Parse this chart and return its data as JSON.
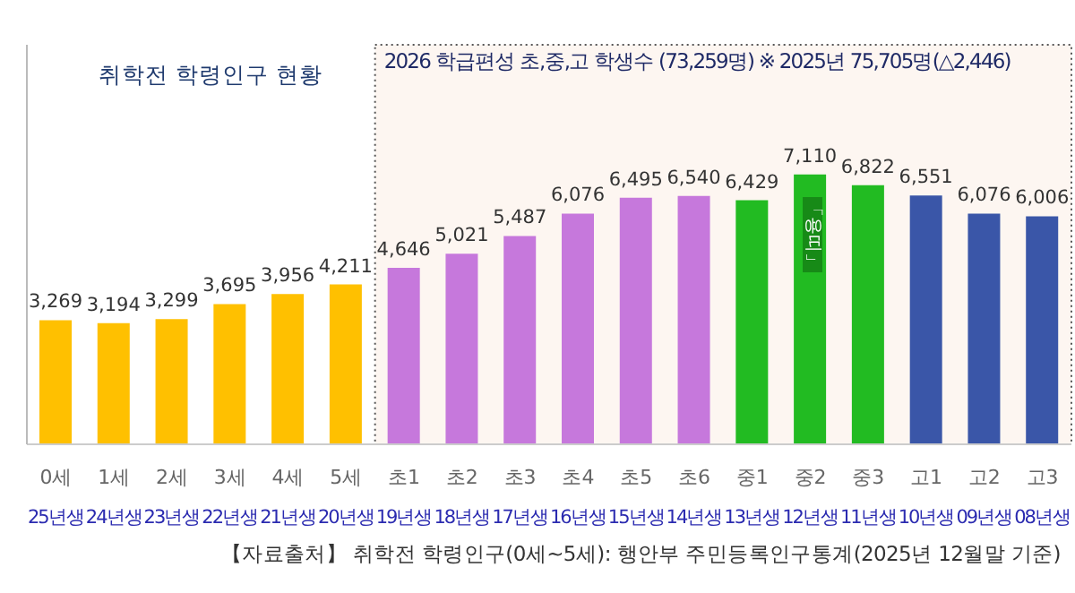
{
  "chart_data": {
    "type": "bar",
    "title": "취학전 학령인구 현황",
    "categories": [
      "0세\n25년생",
      "1세\n24년생",
      "2세\n23년생",
      "3세\n22년생",
      "4세\n21년생",
      "5세\n20년생",
      "초1\n19년생",
      "초2\n18년생",
      "초3\n17년생",
      "초4\n16년생",
      "초5\n15년생",
      "초6\n14년생",
      "중1\n13년생",
      "중2\n12년생",
      "중3\n11년생",
      "고1\n10년생",
      "고2\n09년생",
      "고3\n08년생"
    ],
    "values": [
      3269,
      3194,
      3299,
      3695,
      3956,
      4211,
      4646,
      5021,
      5487,
      6076,
      6495,
      6540,
      6429,
      7110,
      6822,
      6551,
      6076,
      6006
    ],
    "value_labels": [
      "3,269",
      "3,194",
      "3,299",
      "3,695",
      "3,956",
      "4,211",
      "4,646",
      "5,021",
      "5,487",
      "6,076",
      "6,495",
      "6,540",
      "6,429",
      "7,110",
      "6,822",
      "6,551",
      "6,076",
      "6,006"
    ],
    "colors": [
      "#ffc000",
      "#ffc000",
      "#ffc000",
      "#ffc000",
      "#ffc000",
      "#ffc000",
      "#c678dc",
      "#c678dc",
      "#c678dc",
      "#c678dc",
      "#c678dc",
      "#c678dc",
      "#22bb22",
      "#22bb22",
      "#22bb22",
      "#3a56a8",
      "#3a56a8",
      "#3a56a8"
    ],
    "tick_labels": "x",
    "bands": [
      {
        "axis": "x",
        "from": "초1\n19년생",
        "to": "고3\n08년생",
        "label": "2026 학급편성 초,중,고 학생수 (73,259명) ※ 2025년 75,705명(△2,446)",
        "color": "#fdf6f1"
      }
    ],
    "annotations": [
      "「용띠」",
      "【자료출처】 취학전 학령인구(0세~5세): 행안부 주민등록인구통계(2025년 12월말 기준)"
    ]
  }
}
